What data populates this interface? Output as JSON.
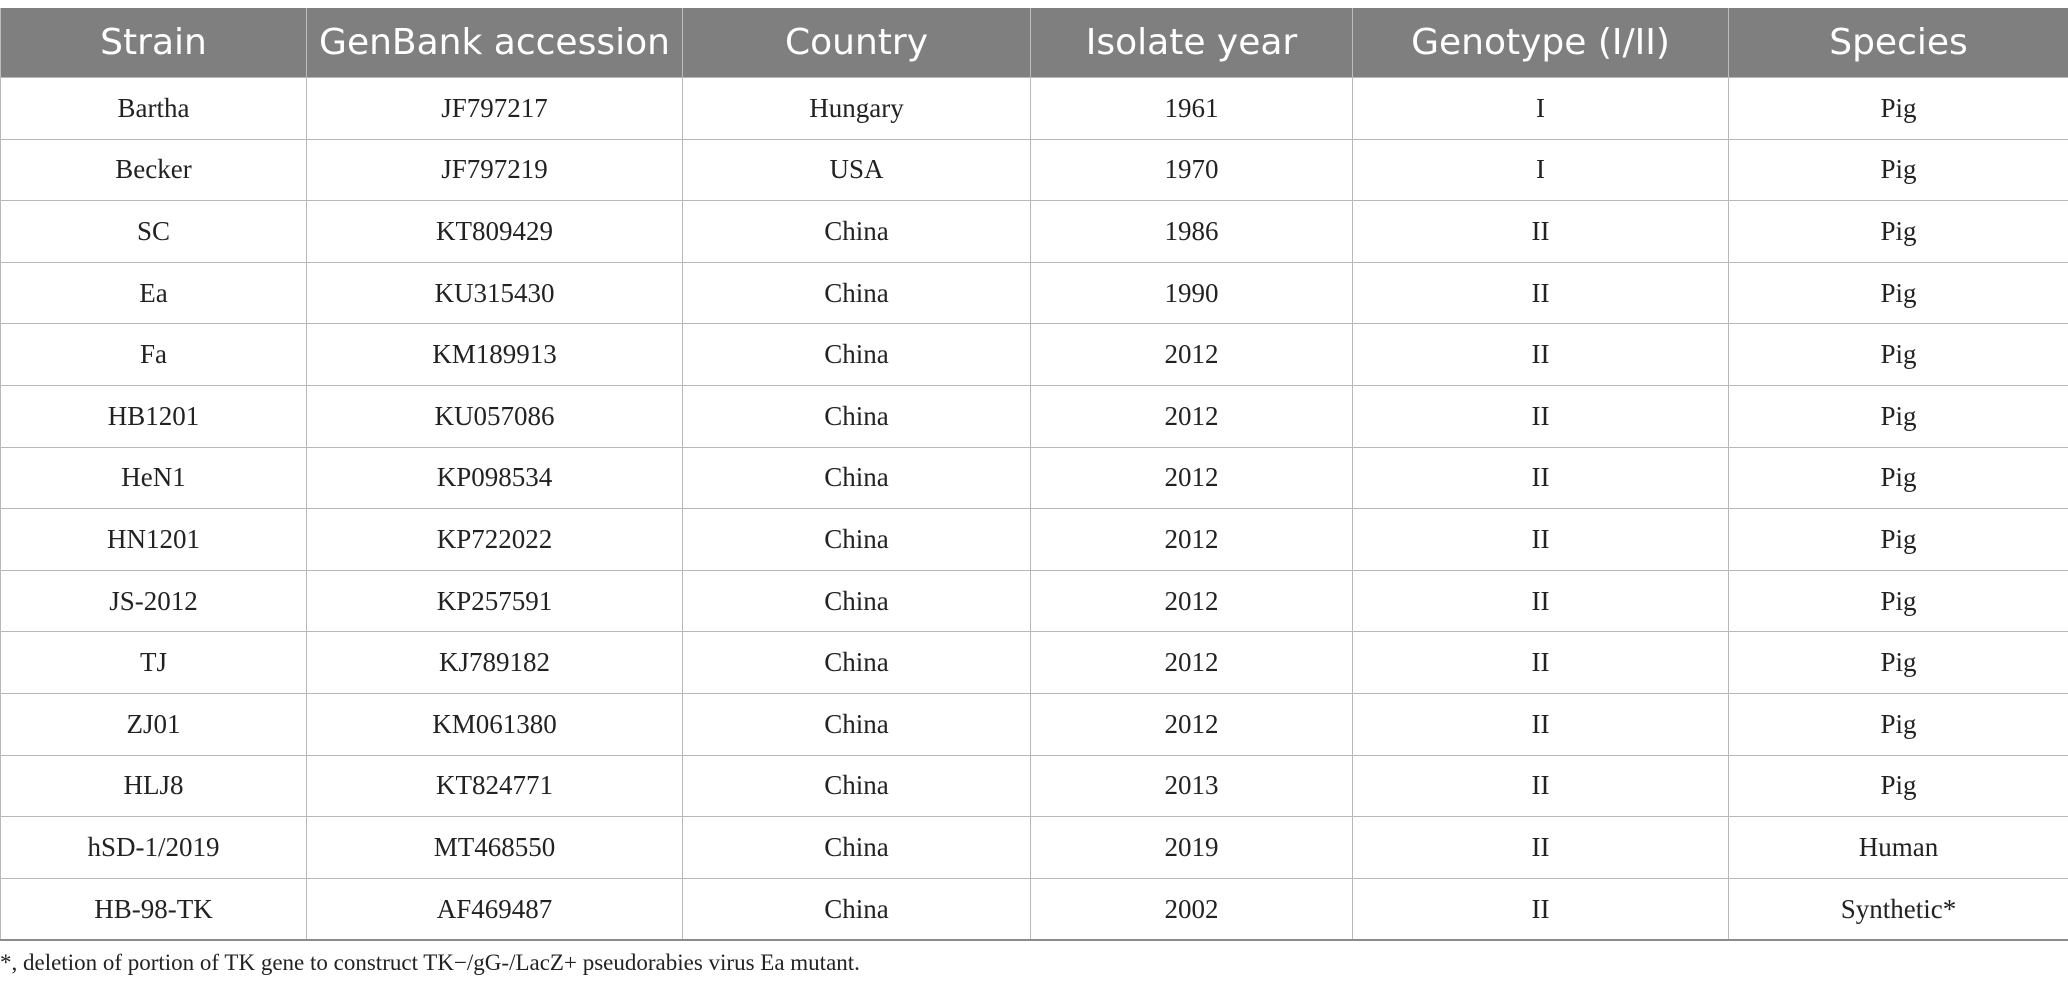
{
  "table": {
    "headers": [
      "Strain",
      "GenBank accession",
      "Country",
      "Isolate year",
      "Genotype (I/II)",
      "Species"
    ],
    "rows": [
      [
        "Bartha",
        "JF797217",
        "Hungary",
        "1961",
        "I",
        "Pig"
      ],
      [
        "Becker",
        "JF797219",
        "USA",
        "1970",
        "I",
        "Pig"
      ],
      [
        "SC",
        "KT809429",
        "China",
        "1986",
        "II",
        "Pig"
      ],
      [
        "Ea",
        "KU315430",
        "China",
        "1990",
        "II",
        "Pig"
      ],
      [
        "Fa",
        "KM189913",
        "China",
        "2012",
        "II",
        "Pig"
      ],
      [
        "HB1201",
        "KU057086",
        "China",
        "2012",
        "II",
        "Pig"
      ],
      [
        "HeN1",
        "KP098534",
        "China",
        "2012",
        "II",
        "Pig"
      ],
      [
        "HN1201",
        "KP722022",
        "China",
        "2012",
        "II",
        "Pig"
      ],
      [
        "JS-2012",
        "KP257591",
        "China",
        "2012",
        "II",
        "Pig"
      ],
      [
        "TJ",
        "KJ789182",
        "China",
        "2012",
        "II",
        "Pig"
      ],
      [
        "ZJ01",
        "KM061380",
        "China",
        "2012",
        "II",
        "Pig"
      ],
      [
        "HLJ8",
        "KT824771",
        "China",
        "2013",
        "II",
        "Pig"
      ],
      [
        "hSD-1/2019",
        "MT468550",
        "China",
        "2019",
        "II",
        "Human"
      ],
      [
        "HB-98-TK",
        "AF469487",
        "China",
        "2002",
        "II",
        "Synthetic*"
      ]
    ]
  },
  "footnote": "*, deletion of portion of TK gene to construct TK−/gG-/LacZ+ pseudorabies virus Ea mutant.",
  "colors": {
    "header_background": "#7f7f7f",
    "header_text": "#ffffff",
    "grid_line": "#b8b8b8",
    "body_text": "#222222"
  }
}
